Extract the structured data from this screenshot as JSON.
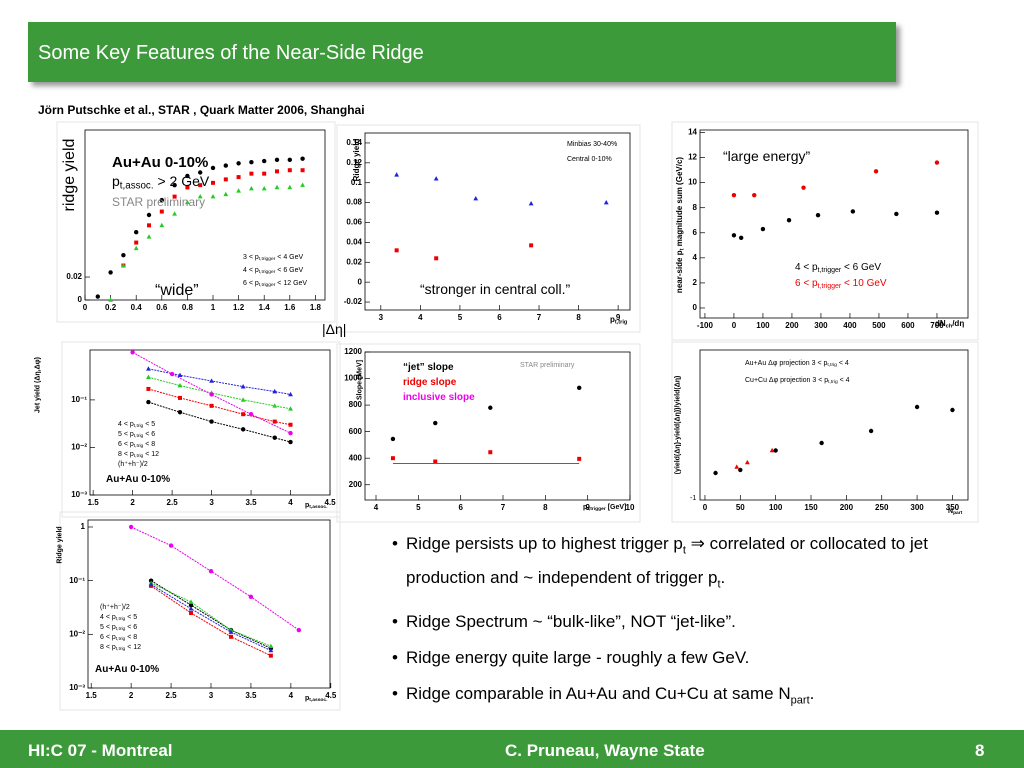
{
  "slide": {
    "title": "Some Key Features of the Near-Side Ridge",
    "reference": "Jörn Putschke et al., STAR , Quark Matter 2006, Shanghai",
    "bullets": [
      [
        "Ridge persists up to highest trigger p",
        "t",
        " ⇒ correlated or collocated to jet production and ~ independent of trigger p",
        "t",
        "."
      ],
      [
        "Ridge Spectrum ~ “bulk-like”, NOT “jet-like”."
      ],
      [
        "Ridge energy quite large - roughly a few GeV."
      ],
      [
        "Ridge comparable in Au+Au and Cu+Cu at same N",
        "part",
        "."
      ]
    ],
    "footer": {
      "left": "HI:C 07 - Montreal",
      "center": "C. Pruneau, Wayne State",
      "page": "8"
    }
  },
  "panels": [
    {
      "log": false,
      "xlim": [
        0,
        1.875
      ],
      "ylim": [
        0,
        0.148
      ],
      "xticks": [
        0,
        0.2,
        0.4,
        0.6,
        0.8,
        1,
        1.2,
        1.4,
        1.6,
        1.8
      ],
      "yticks": [
        0,
        0.02
      ],
      "ylabel": [
        "ridge yield"
      ],
      "xlabel": [
        "|Δη|"
      ],
      "texts": [
        {
          "text": [
            "Au+Au 0-10%"
          ],
          "bold": true
        },
        {
          "text": [
            "p",
            "t,assoc.",
            " > 2 GeV"
          ]
        },
        {
          "text": [
            "STAR preliminary"
          ],
          "color": "#888"
        },
        {
          "text": [
            "“wide”"
          ]
        },
        {
          "text": [
            "3 < p",
            "t,trigger",
            " < 4 GeV"
          ]
        },
        {
          "text": [
            "4 < p",
            "t,trigger",
            " < 6 GeV"
          ]
        },
        {
          "text": [
            "6 < p",
            "t,trigger",
            " < 12 GeV"
          ]
        }
      ],
      "series": [
        {
          "color": "#000",
          "marker": "circle",
          "x": [
            0.1,
            0.2,
            0.3,
            0.4,
            0.5,
            0.6,
            0.7,
            0.8,
            0.9,
            1.0,
            1.1,
            1.2,
            1.3,
            1.4,
            1.5,
            1.6,
            1.7
          ],
          "y": [
            0.003,
            0.024,
            0.039,
            0.059,
            0.074,
            0.087,
            0.1,
            0.108,
            0.111,
            0.115,
            0.117,
            0.119,
            0.12,
            0.121,
            0.122,
            0.122,
            0.123
          ]
        },
        {
          "color": "#e00",
          "marker": "square",
          "x": [
            0.3,
            0.4,
            0.5,
            0.6,
            0.7,
            0.8,
            0.9,
            1.0,
            1.1,
            1.2,
            1.3,
            1.4,
            1.5,
            1.6,
            1.7
          ],
          "y": [
            0.03,
            0.05,
            0.065,
            0.077,
            0.09,
            0.098,
            0.1,
            0.102,
            0.105,
            0.107,
            0.11,
            0.11,
            0.112,
            0.113,
            0.113
          ]
        },
        {
          "color": "#2c2",
          "marker": "triangle",
          "x": [
            0.2,
            0.3,
            0.4,
            0.5,
            0.6,
            0.7,
            0.8,
            0.9,
            1.0,
            1.1,
            1.2,
            1.3,
            1.4,
            1.5,
            1.6,
            1.7
          ],
          "y": [
            0.0,
            0.03,
            0.045,
            0.055,
            0.065,
            0.075,
            0.085,
            0.09,
            0.09,
            0.092,
            0.095,
            0.097,
            0.097,
            0.098,
            0.098,
            0.1
          ]
        }
      ]
    },
    {
      "log": false,
      "xlim": [
        2.6,
        9.3
      ],
      "ylim": [
        -0.028,
        0.15
      ],
      "xticks": [
        3,
        4,
        5,
        6,
        7,
        8,
        9
      ],
      "yticks": [
        -0.02,
        0,
        0.02,
        0.04,
        0.06,
        0.08,
        0.1,
        0.12,
        0.14
      ],
      "ylabel": [
        "Ridge yield"
      ],
      "xlabel": [
        "p",
        "t,trig"
      ],
      "texts": [
        {
          "text": [
            "Minbias 30-40%"
          ]
        },
        {
          "text": [
            "Central 0-10%"
          ]
        },
        {
          "text": [
            "“stronger in central coll.”"
          ]
        }
      ],
      "series": [
        {
          "color": "#22d",
          "marker": "triangle",
          "x": [
            3.4,
            4.4,
            5.4,
            6.8,
            8.7
          ],
          "y": [
            0.108,
            0.104,
            0.084,
            0.079,
            0.08
          ]
        },
        {
          "color": "#e00",
          "marker": "square",
          "x": [
            3.4,
            4.4,
            6.8
          ],
          "y": [
            0.032,
            0.024,
            0.037
          ]
        }
      ]
    },
    {
      "log": false,
      "xlim": [
        -117,
        807
      ],
      "ylim": [
        -0.8,
        14.2
      ],
      "xticks": [
        -100,
        0,
        100,
        200,
        300,
        400,
        500,
        600,
        700
      ],
      "yticks": [
        0,
        2,
        4,
        6,
        8,
        10,
        12,
        14
      ],
      "ylabel": [
        "near-side p",
        "t",
        " magnitude sum (GeV/c)"
      ],
      "xlabel": [
        "dN",
        "ch",
        "/dη"
      ],
      "texts": [
        {
          "text": [
            "“large energy”"
          ]
        },
        {
          "text": [
            "4 < p",
            "t,trigger",
            " < 6 GeV"
          ]
        },
        {
          "text": [
            "6 < p",
            "t,trigger",
            " < 10 GeV"
          ],
          "color": "#e00"
        }
      ],
      "series": [
        {
          "color": "#000",
          "marker": "circle",
          "x": [
            0,
            25,
            100,
            190,
            290,
            410,
            560,
            700
          ],
          "y": [
            5.8,
            5.6,
            6.3,
            7,
            7.4,
            7.7,
            7.5,
            7.6
          ]
        },
        {
          "color": "#e00",
          "marker": "circle",
          "x": [
            0,
            70,
            240,
            490,
            700
          ],
          "y": [
            9,
            9,
            9.6,
            10.9,
            11.6
          ]
        }
      ]
    },
    {
      "log": true,
      "xlim": [
        1.46,
        4.5
      ],
      "ylim": [
        0.001,
        1.12
      ],
      "xticks": [
        1.5,
        2,
        2.5,
        3,
        3.5,
        4,
        4.5
      ],
      "yticks": [
        {
          "value": 0.001,
          "label": "10⁻³"
        },
        {
          "value": 0.01,
          "label": "10⁻²"
        },
        {
          "value": 0.1,
          "label": "10⁻¹"
        }
      ],
      "ylabel": [
        "Jet yield (Δη,Δφ)"
      ],
      "xlabel": [
        "p",
        "t,assoc."
      ],
      "texts": [
        {
          "text": [
            "4 < p",
            "t,trig",
            " < 5"
          ]
        },
        {
          "text": [
            "5 < p",
            "t,trig",
            " < 6"
          ]
        },
        {
          "text": [
            "6 < p",
            "t,trig",
            " < 8"
          ]
        },
        {
          "text": [
            "8 < p",
            "t,trig",
            " < 12"
          ]
        },
        {
          "text": [
            "(h⁺+h⁻)/2"
          ]
        },
        {
          "text": [
            "Au+Au 0-10%"
          ],
          "bold": true
        }
      ],
      "series": [
        {
          "color": "#000",
          "marker": "circle",
          "line": true,
          "x": [
            2.2,
            2.6,
            3.0,
            3.4,
            3.8,
            4.0
          ],
          "y": [
            0.09,
            0.055,
            0.035,
            0.024,
            0.016,
            0.013
          ]
        },
        {
          "color": "#e00",
          "marker": "square",
          "line": true,
          "x": [
            2.2,
            2.6,
            3.0,
            3.4,
            3.8,
            4.0
          ],
          "y": [
            0.17,
            0.11,
            0.075,
            0.05,
            0.035,
            0.03
          ]
        },
        {
          "color": "#2c2",
          "marker": "triangle",
          "line": true,
          "x": [
            2.2,
            2.6,
            3.0,
            3.4,
            3.8,
            4.0
          ],
          "y": [
            0.3,
            0.2,
            0.14,
            0.1,
            0.075,
            0.065
          ]
        },
        {
          "color": "#22d",
          "marker": "triangle",
          "line": true,
          "x": [
            2.2,
            2.6,
            3.0,
            3.4,
            3.8,
            4.0
          ],
          "y": [
            0.45,
            0.33,
            0.25,
            0.19,
            0.15,
            0.13
          ]
        },
        {
          "color": "#e0e",
          "marker": "circle",
          "line": true,
          "x": [
            2.0,
            2.5,
            3.0,
            3.5,
            4.0
          ],
          "y": [
            1.0,
            0.35,
            0.13,
            0.05,
            0.02
          ]
        }
      ]
    },
    {
      "log": false,
      "xlim": [
        3.74,
        10
      ],
      "ylim": [
        85,
        1200
      ],
      "xticks": [
        4,
        5,
        6,
        7,
        8,
        9,
        10
      ],
      "yticks": [
        200,
        400,
        600,
        800,
        1000,
        1200
      ],
      "ylabel": [
        "Slope [MeV]"
      ],
      "xlabel": [
        "p",
        "t,trigger",
        " [GeV]"
      ],
      "texts": [
        {
          "text": [
            "“jet” slope"
          ],
          "bold": true
        },
        {
          "text": [
            "ridge slope"
          ],
          "color": "#e00",
          "bold": true
        },
        {
          "text": [
            "inclusive slope"
          ],
          "color": "#e0e",
          "bold": true
        },
        {
          "text": [
            "STAR preliminary"
          ],
          "color": "#888"
        }
      ],
      "series": [
        {
          "color": "#000",
          "marker": "circle",
          "x": [
            4.4,
            5.4,
            6.7,
            8.8
          ],
          "y": [
            545,
            665,
            780,
            930
          ]
        },
        {
          "color": "#e00",
          "marker": "square",
          "x": [
            4.4,
            5.4,
            6.7,
            8.8
          ],
          "y": [
            400,
            375,
            445,
            395
          ]
        },
        {
          "color": "#e0e",
          "marker": "none",
          "line": true,
          "x": [
            4.4,
            8.8
          ],
          "y": [
            360,
            360
          ]
        }
      ]
    },
    {
      "log": false,
      "xlim": [
        -7,
        372
      ],
      "ylim": [
        0,
        1
      ],
      "xticks": [
        0,
        50,
        100,
        150,
        200,
        250,
        300,
        350
      ],
      "yticks": [],
      "ylabel": [
        "(yield(Δη)-yield(Δη))/yield(Δη)"
      ],
      "xlabel": [
        "N",
        "part"
      ],
      "texts": [
        {
          "text": [
            "Au+Au Δφ projection 3 < p",
            "t,trig",
            " < 4"
          ]
        },
        {
          "text": [
            "Cu+Cu Δφ projection 3 < p",
            "t,trig",
            " < 4"
          ]
        },
        {
          "text": [
            "-1"
          ]
        }
      ],
      "series": [
        {
          "color": "#000",
          "marker": "circle",
          "x": [
            15,
            50,
            100,
            165,
            235,
            300,
            350
          ],
          "y": [
            0.18,
            0.2,
            0.33,
            0.38,
            0.46,
            0.62,
            0.6
          ]
        },
        {
          "color": "#e00",
          "marker": "triangle",
          "x": [
            45,
            60,
            95
          ],
          "y": [
            0.22,
            0.25,
            0.33
          ]
        }
      ]
    },
    {
      "log": true,
      "xlim": [
        1.46,
        4.49
      ],
      "ylim": [
        0.001,
        1.35
      ],
      "xticks": [
        1.5,
        2,
        2.5,
        3,
        3.5,
        4,
        4.5
      ],
      "yticks": [
        {
          "value": 0.001,
          "label": "10⁻³"
        },
        {
          "value": 0.01,
          "label": "10⁻²"
        },
        {
          "value": 0.1,
          "label": "10⁻¹"
        },
        1
      ],
      "ylabel": [
        "Ridge yield"
      ],
      "xlabel": [
        "p",
        "t,assoc."
      ],
      "texts": [
        {
          "text": [
            "(h⁺+h⁻)/2"
          ]
        },
        {
          "text": [
            "4 < p",
            "t,trig",
            " < 5"
          ]
        },
        {
          "text": [
            "5 < p",
            "t,trig",
            " < 6"
          ]
        },
        {
          "text": [
            "6 < p",
            "t,trig",
            " < 8"
          ]
        },
        {
          "text": [
            "8 < p",
            "t,trig",
            " < 12"
          ]
        },
        {
          "text": [
            "Au+Au 0-10%"
          ],
          "bold": true
        }
      ],
      "series": [
        {
          "color": "#e0e",
          "marker": "circle",
          "line": true,
          "x": [
            2.0,
            2.5,
            3.0,
            3.5,
            4.1
          ],
          "y": [
            1.0,
            0.45,
            0.15,
            0.05,
            0.012
          ]
        },
        {
          "color": "#000",
          "marker": "circle",
          "line": true,
          "x": [
            2.25,
            2.75,
            3.25,
            3.75
          ],
          "y": [
            0.1,
            0.035,
            0.012,
            0.0055
          ]
        },
        {
          "color": "#e00",
          "marker": "square",
          "line": true,
          "x": [
            2.25,
            2.75,
            3.25,
            3.75
          ],
          "y": [
            0.08,
            0.025,
            0.009,
            0.004
          ]
        },
        {
          "color": "#2c2",
          "marker": "triangle",
          "line": true,
          "x": [
            2.25,
            2.75,
            3.25,
            3.75
          ],
          "y": [
            0.09,
            0.04,
            0.012,
            0.006
          ]
        },
        {
          "color": "#22d",
          "marker": "triangle",
          "line": true,
          "x": [
            2.25,
            2.75,
            3.25,
            3.75
          ],
          "y": [
            0.085,
            0.03,
            0.011,
            0.005
          ]
        }
      ]
    }
  ]
}
